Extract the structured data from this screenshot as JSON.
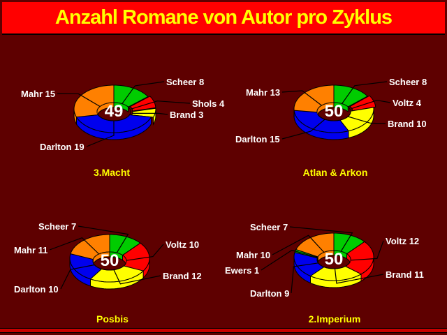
{
  "header": {
    "title": "Anzahl Romane von Autor pro Zyklus"
  },
  "colors": {
    "background": "#5E0000",
    "header_bar": "#FF0000",
    "header_text": "#FFFF00",
    "label_text": "#FFFFFF",
    "chart_title_text": "#FFFF00",
    "center_text": "#FFFFFF",
    "outline": "#000000",
    "bottom_bar": "#C80000"
  },
  "chart_data": [
    {
      "type": "pie",
      "donut": true,
      "title": "3.Macht",
      "center_total": "49",
      "legend_position": "callout-labels",
      "slices": [
        {
          "label": "Scheer",
          "value": 8,
          "color": "#00CC00"
        },
        {
          "label": "Shols",
          "value": 4,
          "color": "#FF0000"
        },
        {
          "label": "Brand",
          "value": 3,
          "color": "#FFFF00"
        },
        {
          "label": "Darlton",
          "value": 19,
          "color": "#0000EE"
        },
        {
          "label": "Mahr",
          "value": 15,
          "color": "#FF8000"
        }
      ]
    },
    {
      "type": "pie",
      "donut": true,
      "title": "Atlan & Arkon",
      "center_total": "50",
      "legend_position": "callout-labels",
      "slices": [
        {
          "label": "Scheer",
          "value": 8,
          "color": "#00CC00"
        },
        {
          "label": "Voltz",
          "value": 4,
          "color": "#FF0000"
        },
        {
          "label": "Brand",
          "value": 10,
          "color": "#FFFF00"
        },
        {
          "label": "Darlton",
          "value": 15,
          "color": "#0000EE"
        },
        {
          "label": "Mahr",
          "value": 13,
          "color": "#FF8000"
        }
      ]
    },
    {
      "type": "pie",
      "donut": true,
      "title": "Posbis",
      "center_total": "50",
      "legend_position": "callout-labels",
      "slices": [
        {
          "label": "Scheer",
          "value": 7,
          "color": "#00CC00"
        },
        {
          "label": "Voltz",
          "value": 10,
          "color": "#FF0000"
        },
        {
          "label": "Brand",
          "value": 12,
          "color": "#FFFF00"
        },
        {
          "label": "Darlton",
          "value": 10,
          "color": "#0000EE"
        },
        {
          "label": "Mahr",
          "value": 11,
          "color": "#FF8000"
        }
      ]
    },
    {
      "type": "pie",
      "donut": true,
      "title": "2.Imperium",
      "center_total": "50",
      "legend_position": "callout-labels",
      "slices": [
        {
          "label": "Scheer",
          "value": 7,
          "color": "#00CC00"
        },
        {
          "label": "Voltz",
          "value": 12,
          "color": "#FF0000"
        },
        {
          "label": "Brand",
          "value": 11,
          "color": "#FFFF00"
        },
        {
          "label": "Darlton",
          "value": 9,
          "color": "#0000EE"
        },
        {
          "label": "Ewers",
          "value": 1,
          "color": "#00CC00"
        },
        {
          "label": "Mahr",
          "value": 10,
          "color": "#FF8000"
        }
      ]
    }
  ]
}
